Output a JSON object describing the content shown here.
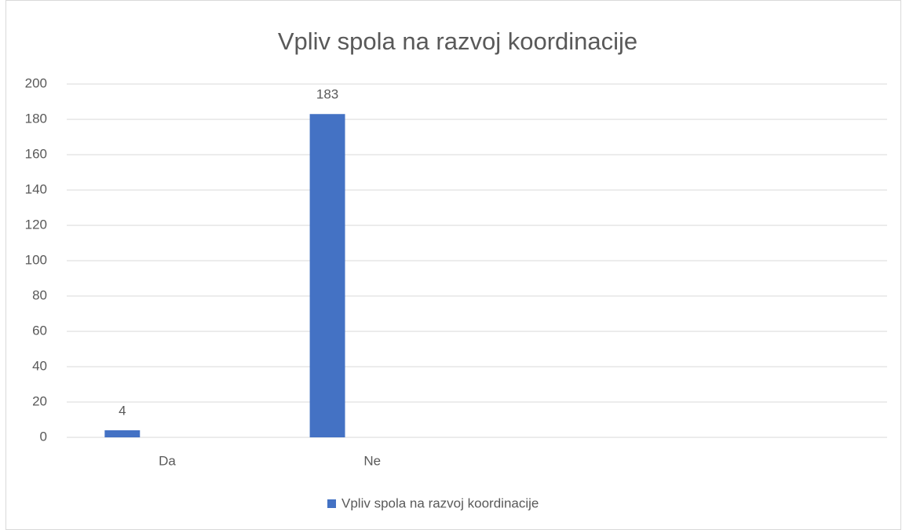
{
  "chart_data": {
    "type": "bar",
    "title": "Vpliv spola na razvoj koordinacije",
    "categories": [
      "Da",
      "Ne",
      null,
      null
    ],
    "series": [
      {
        "name": "Vpliv spola na razvoj koordinacije",
        "color": "#4472c4",
        "values": [
          4,
          183,
          null,
          null
        ]
      }
    ],
    "ylim": [
      0,
      200
    ],
    "yticks": [
      0,
      20,
      40,
      60,
      80,
      100,
      120,
      140,
      160,
      180,
      200
    ],
    "grid": true,
    "legend": "bottom",
    "data_labels": true
  }
}
